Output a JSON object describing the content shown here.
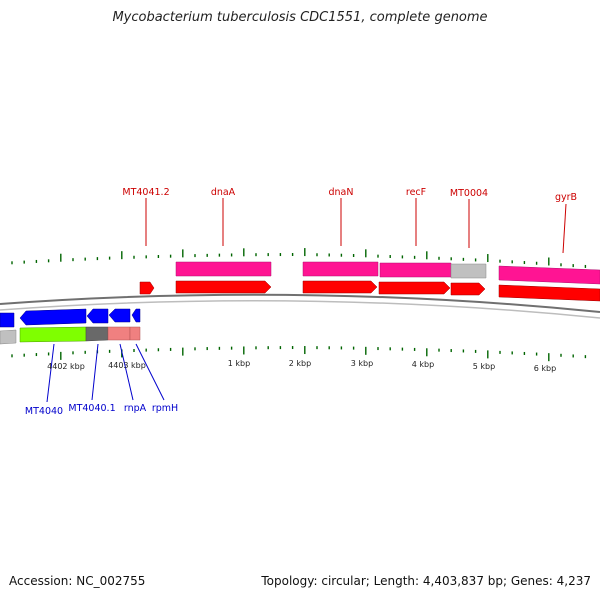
{
  "title": "Mycobacterium tuberculosis CDC1551, complete genome",
  "footer": {
    "accession": "Accession: NC_002755",
    "summary": "Topology: circular; Length: 4,403,837 bp; Genes: 4,237"
  },
  "colors": {
    "forward_gene": "#ff0000",
    "forward_cds": "#ff1493",
    "reverse_gene": "#0000ff",
    "reverse_cds": "#7fff00",
    "rna": "#f08080",
    "other": "#c0c0c0",
    "backbone": "#808080",
    "ticks": "#006400",
    "forward_label": "#cc0000",
    "reverse_label": "#0000cc"
  },
  "forward_labels": [
    "MT4041.2",
    "dnaA",
    "dnaN",
    "recF",
    "MT0004",
    "gyrB"
  ],
  "reverse_labels": [
    "MT4040",
    "MT4040.1",
    "rnpA",
    "rpmH"
  ],
  "scale_labels": [
    "4402 kbp",
    "4403 kbp",
    "1 kbp",
    "2 kbp",
    "3 kbp",
    "4 kbp",
    "5 kbp",
    "6 kbp"
  ]
}
